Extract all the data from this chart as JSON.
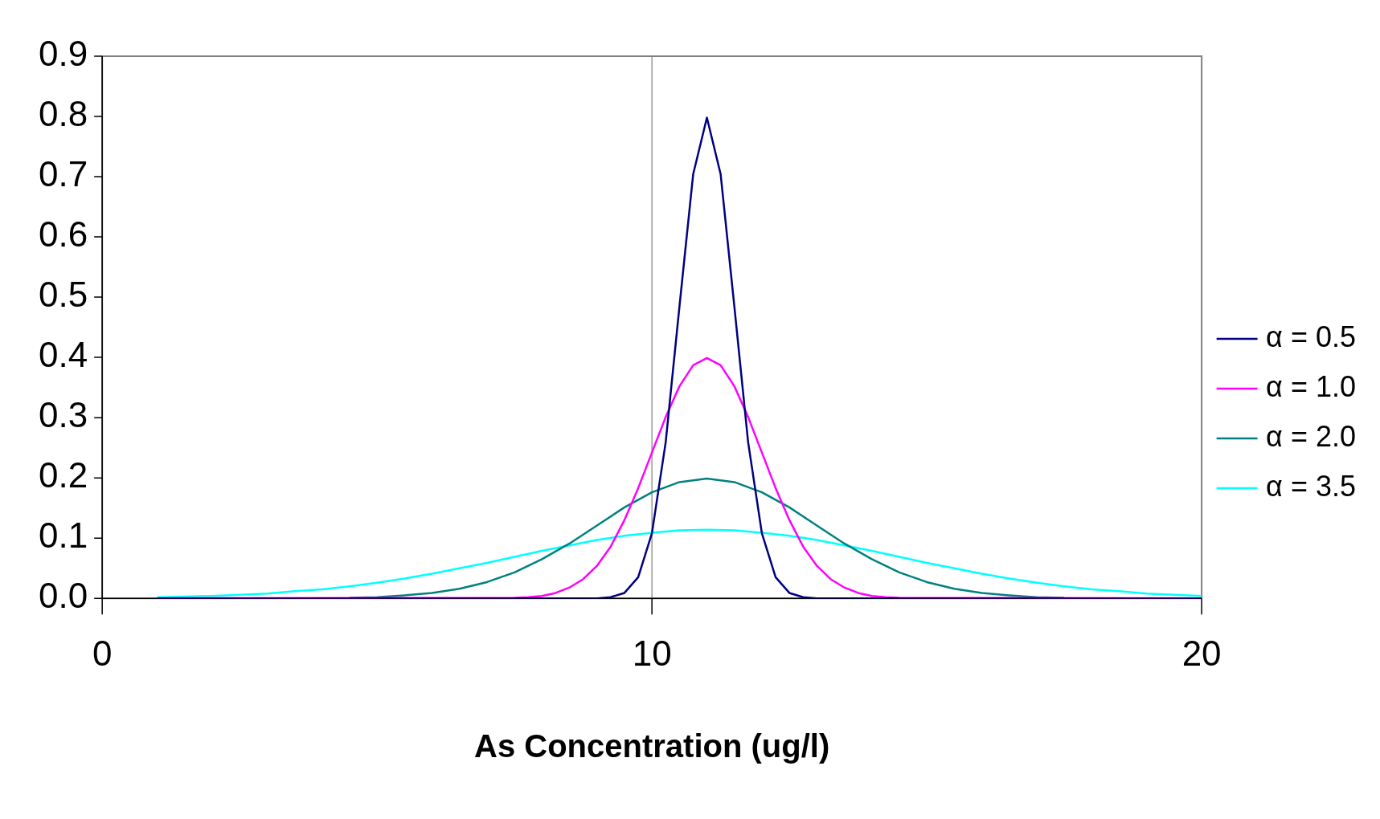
{
  "chart_data": {
    "type": "line",
    "xlabel": "As Concentration (ug/l)",
    "xlim": [
      0,
      20
    ],
    "xticks": [
      0,
      10,
      20
    ],
    "ylim": [
      0,
      0.9
    ],
    "yticks": [
      {
        "value": 0,
        "label": "0.0"
      },
      0.1,
      0.2,
      0.3,
      0.4,
      0.5,
      0.6,
      0.7,
      0.8,
      0.9
    ],
    "grid": false,
    "legend": "right",
    "marker": "none",
    "line_style": "solid",
    "ref_lines": [
      {
        "axis": "x",
        "value": 10,
        "color": "#808080"
      }
    ],
    "series": [
      {
        "name": "α = 0.5",
        "color": "#000080",
        "x": [
          1,
          8.75,
          9,
          9.25,
          9.5,
          9.75,
          10,
          10.25,
          10.5,
          10.75,
          11,
          11.25,
          11.5,
          11.75,
          12,
          12.25,
          12.5,
          12.75,
          13,
          13.25,
          20
        ],
        "values": [
          0,
          0,
          0,
          0.002,
          0.009,
          0.035,
          0.108,
          0.259,
          0.484,
          0.704,
          0.798,
          0.704,
          0.484,
          0.259,
          0.108,
          0.035,
          0.009,
          0.002,
          0,
          0,
          0
        ]
      },
      {
        "name": "α = 1.0",
        "color": "#ff00ff",
        "x": [
          1,
          7.5,
          7.75,
          8,
          8.25,
          8.5,
          8.75,
          9,
          9.25,
          9.5,
          9.75,
          10,
          10.25,
          10.5,
          10.75,
          11,
          11.25,
          11.5,
          11.75,
          12,
          12.25,
          12.5,
          12.75,
          13,
          13.25,
          13.5,
          13.75,
          14,
          14.25,
          14.5,
          20
        ],
        "values": [
          0,
          0.001,
          0.002,
          0.004,
          0.009,
          0.018,
          0.032,
          0.054,
          0.086,
          0.13,
          0.183,
          0.242,
          0.301,
          0.352,
          0.387,
          0.399,
          0.387,
          0.352,
          0.301,
          0.242,
          0.183,
          0.13,
          0.086,
          0.054,
          0.032,
          0.018,
          0.009,
          0.004,
          0.002,
          0.001,
          0
        ]
      },
      {
        "name": "α = 2.0",
        "color": "#008080",
        "x": [
          4.5,
          5,
          5.5,
          6,
          6.5,
          7,
          7.5,
          8,
          8.5,
          9,
          9.5,
          10,
          10.5,
          11,
          11.5,
          12,
          12.5,
          13,
          13.5,
          14,
          14.5,
          15,
          15.5,
          16,
          16.5,
          17,
          17.5
        ],
        "values": [
          0.001,
          0.002,
          0.005,
          0.009,
          0.016,
          0.027,
          0.043,
          0.065,
          0.091,
          0.121,
          0.151,
          0.176,
          0.193,
          0.199,
          0.193,
          0.176,
          0.151,
          0.121,
          0.091,
          0.065,
          0.043,
          0.027,
          0.016,
          0.009,
          0.005,
          0.002,
          0.001
        ]
      },
      {
        "name": "α = 3.5",
        "color": "#00ffff",
        "x": [
          1,
          1.5,
          2,
          2.5,
          3,
          3.5,
          4,
          4.5,
          5,
          5.5,
          6,
          6.5,
          7,
          7.5,
          8,
          8.5,
          9,
          9.5,
          10,
          10.5,
          11,
          11.5,
          12,
          12.5,
          13,
          13.5,
          14,
          14.5,
          15,
          15.5,
          16,
          16.5,
          17,
          17.5,
          18,
          18.5,
          19,
          19.5,
          20
        ],
        "values": [
          0.002,
          0.003,
          0.004,
          0.006,
          0.008,
          0.012,
          0.015,
          0.02,
          0.026,
          0.033,
          0.041,
          0.05,
          0.059,
          0.069,
          0.079,
          0.088,
          0.097,
          0.104,
          0.109,
          0.113,
          0.114,
          0.113,
          0.109,
          0.104,
          0.097,
          0.088,
          0.079,
          0.069,
          0.059,
          0.05,
          0.041,
          0.033,
          0.026,
          0.02,
          0.015,
          0.012,
          0.008,
          0.006,
          0.004
        ]
      }
    ]
  }
}
